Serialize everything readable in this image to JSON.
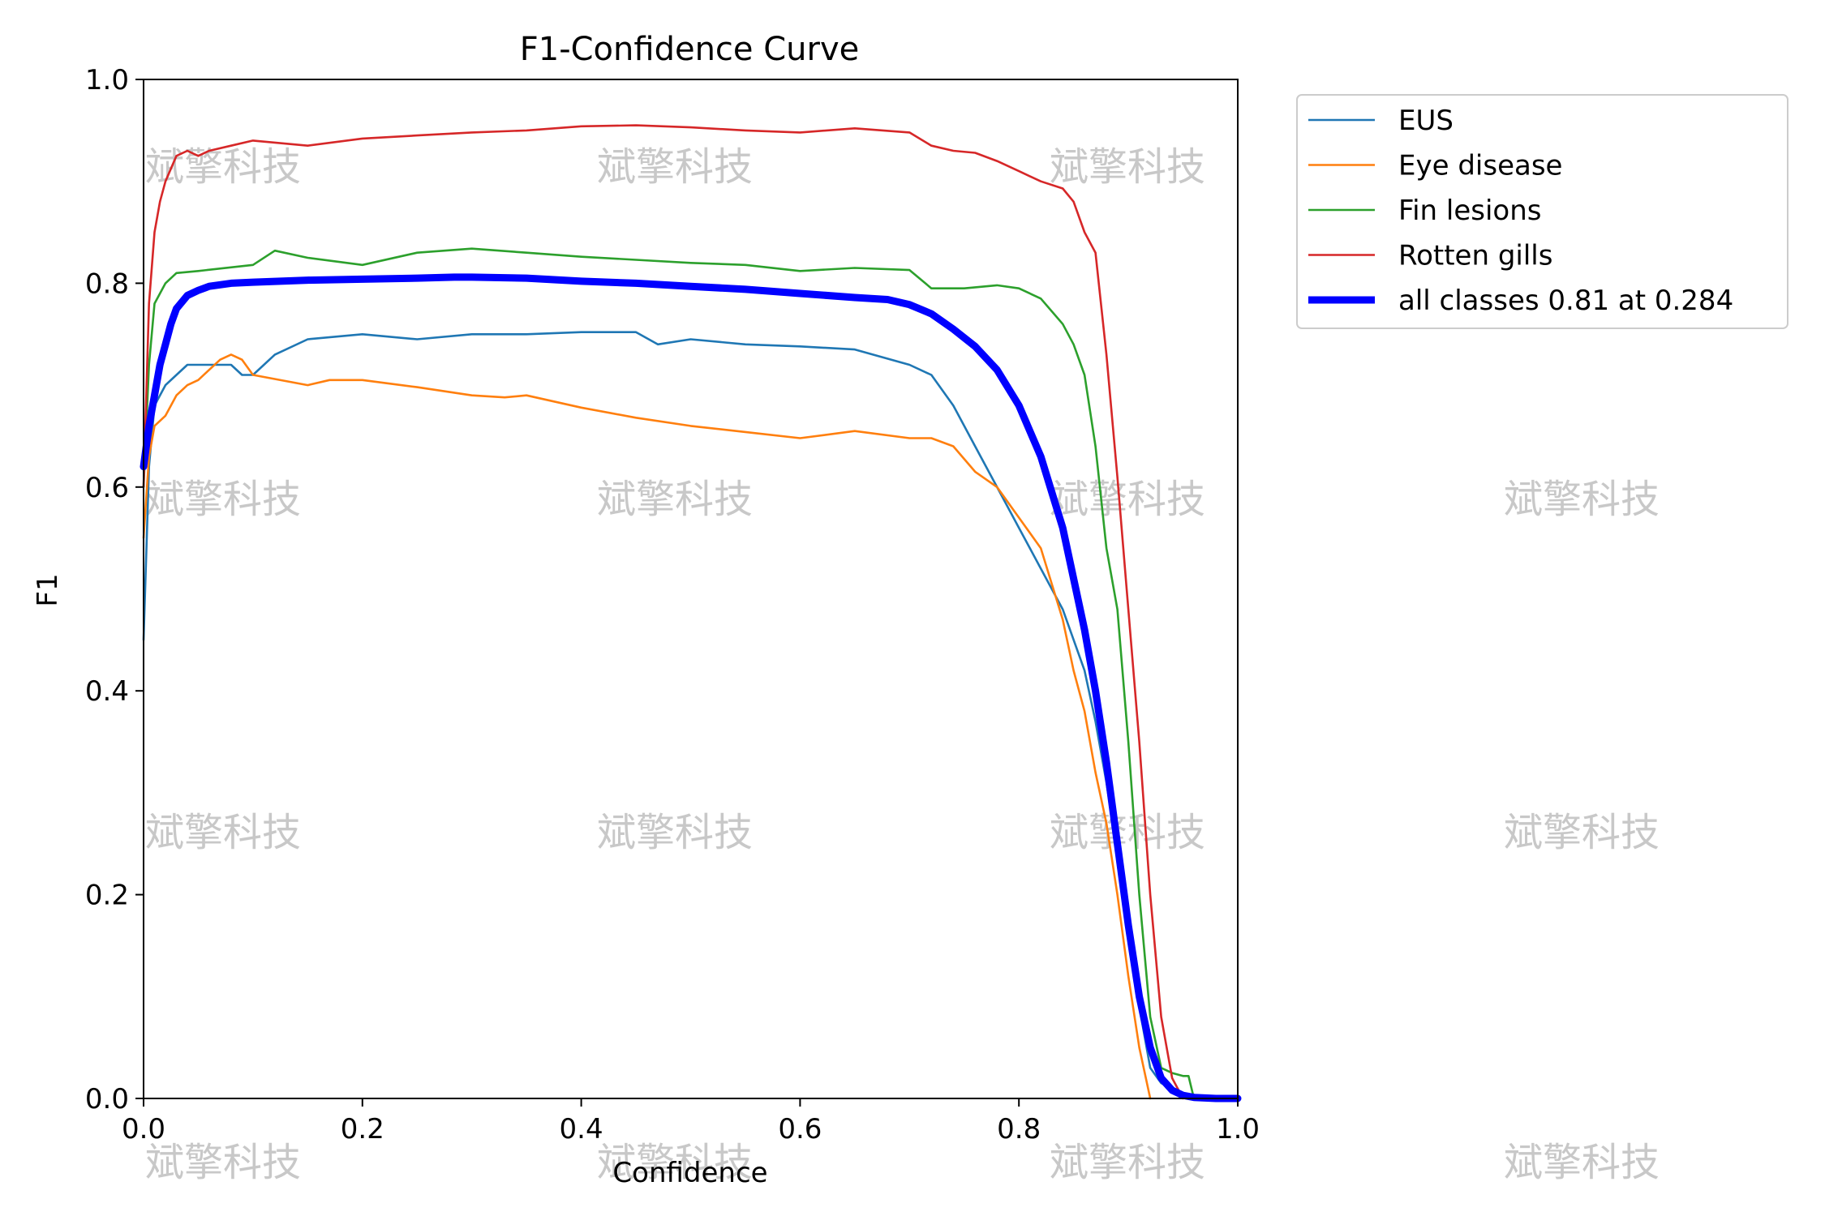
{
  "chart_data": {
    "type": "line",
    "title": "F1-Confidence Curve",
    "xlabel": "Confidence",
    "ylabel": "F1",
    "xlim": [
      0,
      1
    ],
    "ylim": [
      0,
      1
    ],
    "x_ticks": [
      "0.0",
      "0.2",
      "0.4",
      "0.6",
      "0.8",
      "1.0"
    ],
    "y_ticks": [
      "0.0",
      "0.2",
      "0.4",
      "0.6",
      "0.8",
      "1.0"
    ],
    "grid": false,
    "legend_position": "outside-top-right",
    "watermark_text": "斌擎科技",
    "series": [
      {
        "name": "EUS",
        "color": "#1f77b4",
        "x": [
          0.0,
          0.005,
          0.01,
          0.02,
          0.03,
          0.04,
          0.05,
          0.06,
          0.07,
          0.08,
          0.09,
          0.1,
          0.12,
          0.15,
          0.2,
          0.25,
          0.3,
          0.35,
          0.4,
          0.45,
          0.47,
          0.5,
          0.55,
          0.6,
          0.65,
          0.7,
          0.72,
          0.74,
          0.76,
          0.78,
          0.8,
          0.82,
          0.84,
          0.86,
          0.87,
          0.88,
          0.89,
          0.9,
          0.91,
          0.92,
          0.93,
          0.94,
          0.95,
          0.97,
          1.0
        ],
        "y": [
          0.45,
          0.62,
          0.68,
          0.7,
          0.71,
          0.72,
          0.72,
          0.72,
          0.72,
          0.72,
          0.71,
          0.71,
          0.73,
          0.745,
          0.75,
          0.745,
          0.75,
          0.75,
          0.752,
          0.752,
          0.74,
          0.745,
          0.74,
          0.738,
          0.735,
          0.72,
          0.71,
          0.68,
          0.64,
          0.6,
          0.56,
          0.52,
          0.48,
          0.42,
          0.37,
          0.31,
          0.24,
          0.17,
          0.09,
          0.03,
          0.015,
          0.01,
          0.005,
          0.002,
          0.0
        ]
      },
      {
        "name": "Eye disease",
        "color": "#ff7f0e",
        "x": [
          0.0,
          0.005,
          0.01,
          0.02,
          0.03,
          0.04,
          0.05,
          0.06,
          0.07,
          0.08,
          0.09,
          0.1,
          0.15,
          0.17,
          0.2,
          0.25,
          0.3,
          0.33,
          0.35,
          0.4,
          0.45,
          0.5,
          0.55,
          0.6,
          0.65,
          0.7,
          0.72,
          0.74,
          0.76,
          0.78,
          0.8,
          0.82,
          0.84,
          0.85,
          0.86,
          0.87,
          0.88,
          0.89,
          0.9,
          0.91,
          0.92
        ],
        "y": [
          0.55,
          0.63,
          0.66,
          0.67,
          0.69,
          0.7,
          0.705,
          0.715,
          0.725,
          0.73,
          0.725,
          0.71,
          0.7,
          0.705,
          0.705,
          0.698,
          0.69,
          0.688,
          0.69,
          0.678,
          0.668,
          0.66,
          0.654,
          0.648,
          0.655,
          0.648,
          0.648,
          0.64,
          0.615,
          0.6,
          0.57,
          0.54,
          0.47,
          0.42,
          0.38,
          0.32,
          0.27,
          0.2,
          0.12,
          0.05,
          0.0
        ]
      },
      {
        "name": "Fin lesions",
        "color": "#2ca02c",
        "x": [
          0.0,
          0.005,
          0.01,
          0.02,
          0.03,
          0.05,
          0.1,
          0.12,
          0.15,
          0.2,
          0.25,
          0.3,
          0.35,
          0.4,
          0.45,
          0.5,
          0.55,
          0.6,
          0.65,
          0.7,
          0.72,
          0.75,
          0.78,
          0.8,
          0.82,
          0.84,
          0.85,
          0.86,
          0.87,
          0.88,
          0.89,
          0.9,
          0.91,
          0.92,
          0.93,
          0.94,
          0.95,
          0.955,
          0.96,
          1.0
        ],
        "y": [
          0.6,
          0.72,
          0.78,
          0.8,
          0.81,
          0.812,
          0.818,
          0.832,
          0.825,
          0.818,
          0.83,
          0.834,
          0.83,
          0.826,
          0.823,
          0.82,
          0.818,
          0.812,
          0.815,
          0.813,
          0.795,
          0.795,
          0.798,
          0.795,
          0.785,
          0.76,
          0.74,
          0.71,
          0.64,
          0.54,
          0.48,
          0.35,
          0.2,
          0.08,
          0.03,
          0.025,
          0.022,
          0.022,
          0.0,
          0.0
        ]
      },
      {
        "name": "Rotten gills",
        "color": "#d62728",
        "x": [
          0.0,
          0.005,
          0.01,
          0.015,
          0.02,
          0.03,
          0.04,
          0.05,
          0.06,
          0.08,
          0.1,
          0.15,
          0.2,
          0.25,
          0.3,
          0.35,
          0.4,
          0.45,
          0.5,
          0.55,
          0.6,
          0.65,
          0.7,
          0.72,
          0.74,
          0.76,
          0.78,
          0.8,
          0.82,
          0.84,
          0.85,
          0.86,
          0.87,
          0.88,
          0.89,
          0.9,
          0.91,
          0.92,
          0.93,
          0.94,
          0.95
        ],
        "y": [
          0.6,
          0.78,
          0.85,
          0.88,
          0.9,
          0.925,
          0.93,
          0.925,
          0.93,
          0.935,
          0.94,
          0.935,
          0.942,
          0.945,
          0.948,
          0.95,
          0.954,
          0.955,
          0.953,
          0.95,
          0.948,
          0.952,
          0.948,
          0.935,
          0.93,
          0.928,
          0.92,
          0.91,
          0.9,
          0.893,
          0.88,
          0.85,
          0.83,
          0.73,
          0.61,
          0.48,
          0.35,
          0.2,
          0.08,
          0.02,
          0.0
        ]
      },
      {
        "name": "all classes 0.81 at 0.284",
        "color": "#0000ff",
        "x": [
          0.0,
          0.005,
          0.01,
          0.015,
          0.02,
          0.025,
          0.03,
          0.04,
          0.05,
          0.06,
          0.08,
          0.1,
          0.15,
          0.2,
          0.25,
          0.284,
          0.3,
          0.35,
          0.4,
          0.45,
          0.5,
          0.55,
          0.6,
          0.65,
          0.68,
          0.7,
          0.72,
          0.74,
          0.76,
          0.78,
          0.8,
          0.82,
          0.84,
          0.86,
          0.87,
          0.88,
          0.89,
          0.9,
          0.91,
          0.92,
          0.93,
          0.94,
          0.95,
          0.96,
          0.98,
          1.0
        ],
        "y": [
          0.62,
          0.66,
          0.69,
          0.72,
          0.74,
          0.76,
          0.775,
          0.788,
          0.793,
          0.797,
          0.8,
          0.801,
          0.803,
          0.804,
          0.805,
          0.806,
          0.806,
          0.805,
          0.802,
          0.8,
          0.797,
          0.794,
          0.79,
          0.786,
          0.784,
          0.779,
          0.77,
          0.755,
          0.738,
          0.715,
          0.68,
          0.63,
          0.56,
          0.46,
          0.4,
          0.33,
          0.25,
          0.17,
          0.1,
          0.05,
          0.02,
          0.008,
          0.003,
          0.001,
          0.0,
          0.0
        ]
      }
    ]
  }
}
